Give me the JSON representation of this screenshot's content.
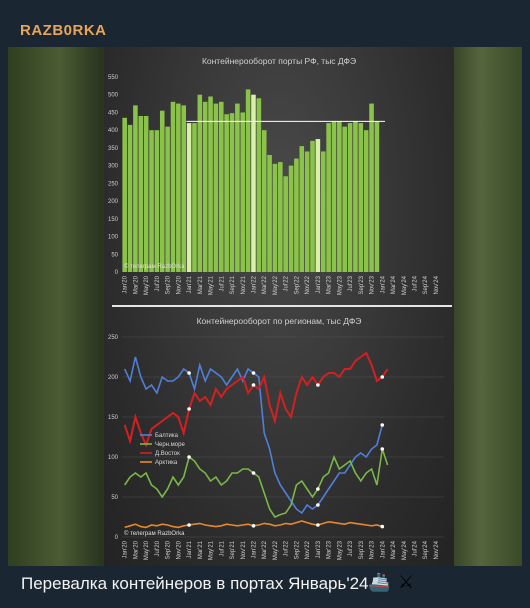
{
  "post": {
    "channel_name": "RAZB0RKA",
    "caption": "Перевалка контейнеров в портах Январь'24",
    "caption_icons": [
      "ship-icon",
      "crossed-swords-icon"
    ]
  },
  "chart_data": [
    {
      "type": "bar",
      "title": "Контейнерооборот порты РФ, тыс ДФЭ",
      "watermark": "© телеграм RazbOrka",
      "ylim": [
        0,
        550
      ],
      "yticks": [
        0,
        50,
        100,
        150,
        200,
        250,
        300,
        350,
        400,
        450,
        500,
        550
      ],
      "categories": [
        "Jan'20",
        "Feb'20",
        "Mar'20",
        "Apr'20",
        "May'20",
        "Jun'20",
        "Jul'20",
        "Aug'20",
        "Sep'20",
        "Oct'20",
        "Nov'20",
        "Dec'20",
        "Jan'21",
        "Feb'21",
        "Mar'21",
        "Apr'21",
        "May'21",
        "Jun'21",
        "Jul'21",
        "Aug'21",
        "Sep'21",
        "Oct'21",
        "Nov'21",
        "Dec'21",
        "Jan'22",
        "Feb'22",
        "Mar'22",
        "Apr'22",
        "May'22",
        "Jun'22",
        "Jul'22",
        "Aug'22",
        "Sep'22",
        "Oct'22",
        "Nov'22",
        "Dec'22",
        "Jan'23",
        "Feb'23",
        "Mar'23",
        "Apr'23",
        "May'23",
        "Jun'23",
        "Jul'23",
        "Aug'23",
        "Sep'23",
        "Oct'23",
        "Nov'23",
        "Dec'23",
        "Jan'24",
        "Feb'24",
        "Mar'24",
        "Apr'24",
        "May'24",
        "Jun'24",
        "Jul'24",
        "Aug'24",
        "Sep'24",
        "Oct'24",
        "Nov'24",
        "Dec'24"
      ],
      "tick_labels": [
        "Jan'20",
        "Mar'20",
        "May'20",
        "Jul'20",
        "Sep'20",
        "Nov'20",
        "Jan'21",
        "Mar'21",
        "May'21",
        "Jul'21",
        "Sep'21",
        "Nov'21",
        "Jan'22",
        "Mar'22",
        "May'22",
        "Jul'22",
        "Sep'22",
        "Nov'22",
        "Jan'23",
        "Mar'23",
        "May'23",
        "Jul'23",
        "Sep'23",
        "Nov'23",
        "Jan'24",
        "Mar'24",
        "May'24",
        "Jul'24",
        "Sep'24",
        "Nov'24"
      ],
      "values": [
        435,
        415,
        470,
        440,
        440,
        400,
        400,
        455,
        410,
        480,
        475,
        470,
        420,
        420,
        500,
        480,
        495,
        475,
        480,
        445,
        448,
        475,
        450,
        515,
        500,
        490,
        400,
        330,
        305,
        310,
        270,
        300,
        320,
        355,
        340,
        370,
        375,
        340,
        420,
        425,
        425,
        410,
        420,
        425,
        420,
        400,
        475,
        425,
        null,
        null,
        null,
        null,
        null,
        null,
        null,
        null,
        null,
        null,
        null,
        null
      ],
      "highlighted_months": [
        "Jan'21",
        "Jan'22",
        "Jan'23",
        "Jan'24"
      ],
      "reference_line": 425
    },
    {
      "type": "line",
      "title": "Контейнерооборот по регионам, тыс ДФЭ",
      "watermark": "© телеграм RazbOrka",
      "ylim": [
        0,
        250
      ],
      "yticks": [
        0,
        50,
        100,
        150,
        200,
        250
      ],
      "x": [
        "Jan'20",
        "Feb'20",
        "Mar'20",
        "Apr'20",
        "May'20",
        "Jun'20",
        "Jul'20",
        "Aug'20",
        "Sep'20",
        "Oct'20",
        "Nov'20",
        "Dec'20",
        "Jan'21",
        "Feb'21",
        "Mar'21",
        "Apr'21",
        "May'21",
        "Jun'21",
        "Jul'21",
        "Aug'21",
        "Sep'21",
        "Oct'21",
        "Nov'21",
        "Dec'21",
        "Jan'22",
        "Feb'22",
        "Mar'22",
        "Apr'22",
        "May'22",
        "Jun'22",
        "Jul'22",
        "Aug'22",
        "Sep'22",
        "Oct'22",
        "Nov'22",
        "Dec'22",
        "Jan'23",
        "Feb'23",
        "Mar'23",
        "Apr'23",
        "May'23",
        "Jun'23",
        "Jul'23",
        "Aug'23",
        "Sep'23",
        "Oct'23",
        "Nov'23",
        "Dec'23",
        "Jan'24",
        "Feb'24",
        "Mar'24",
        "Apr'24",
        "May'24",
        "Jun'24",
        "Jul'24",
        "Aug'24",
        "Sep'24",
        "Oct'24",
        "Nov'24",
        "Dec'24"
      ],
      "tick_labels": [
        "Jan'20",
        "Mar'20",
        "May'20",
        "Jul'20",
        "Sep'20",
        "Nov'20",
        "Jan'21",
        "Mar'21",
        "May'21",
        "Jul'21",
        "Sep'21",
        "Nov'21",
        "Jan'22",
        "Mar'22",
        "May'22",
        "Jul'22",
        "Sep'22",
        "Nov'22",
        "Jan'23",
        "Mar'23",
        "May'23",
        "Jul'23",
        "Sep'23",
        "Nov'23",
        "Jan'24",
        "Mar'24",
        "May'24",
        "Jul'24",
        "Sep'24",
        "Nov'24"
      ],
      "legend_position": "left",
      "series": [
        {
          "name": "Балтика",
          "color": "#4f7fd9",
          "values": [
            210,
            195,
            225,
            200,
            185,
            190,
            180,
            200,
            195,
            195,
            200,
            210,
            205,
            185,
            215,
            195,
            210,
            205,
            200,
            190,
            200,
            210,
            195,
            210,
            205,
            200,
            130,
            110,
            80,
            65,
            55,
            45,
            35,
            30,
            40,
            35,
            40,
            50,
            60,
            70,
            80,
            80,
            90,
            100,
            105,
            100,
            110,
            115,
            140,
            null,
            null,
            null,
            null,
            null,
            null,
            null,
            null,
            null,
            null,
            null
          ]
        },
        {
          "name": "Черн.море",
          "color": "#7ab648",
          "values": [
            65,
            75,
            80,
            75,
            80,
            65,
            60,
            50,
            60,
            75,
            65,
            75,
            100,
            95,
            85,
            80,
            70,
            75,
            65,
            70,
            80,
            80,
            85,
            85,
            80,
            75,
            55,
            35,
            25,
            28,
            30,
            40,
            65,
            70,
            60,
            50,
            60,
            75,
            80,
            100,
            85,
            90,
            95,
            80,
            70,
            80,
            85,
            65,
            110,
            90,
            null,
            null,
            null,
            null,
            null,
            null,
            null,
            null,
            null,
            null
          ]
        },
        {
          "name": "Д.Восток",
          "color": "#d42020",
          "values": [
            140,
            120,
            150,
            130,
            115,
            135,
            140,
            145,
            150,
            155,
            150,
            130,
            160,
            180,
            170,
            175,
            165,
            185,
            175,
            185,
            190,
            195,
            200,
            180,
            190,
            185,
            200,
            165,
            145,
            180,
            160,
            150,
            180,
            200,
            190,
            200,
            190,
            200,
            205,
            205,
            200,
            210,
            210,
            220,
            225,
            230,
            215,
            195,
            200,
            210,
            null,
            null,
            null,
            null,
            null,
            null,
            null,
            null,
            null,
            null
          ]
        },
        {
          "name": "Арктика",
          "color": "#e8882a",
          "values": [
            12,
            14,
            16,
            13,
            12,
            15,
            14,
            16,
            15,
            13,
            12,
            14,
            15,
            16,
            17,
            15,
            14,
            13,
            14,
            16,
            15,
            14,
            15,
            16,
            14,
            15,
            17,
            16,
            14,
            15,
            17,
            16,
            18,
            20,
            18,
            16,
            15,
            17,
            19,
            18,
            17,
            16,
            18,
            17,
            16,
            15,
            14,
            15,
            13,
            null,
            null,
            null,
            null,
            null,
            null,
            null,
            null,
            null,
            null,
            null
          ]
        }
      ],
      "marked_points": [
        "Jan'21",
        "Jan'22",
        "Jan'23",
        "Jan'24"
      ]
    }
  ]
}
